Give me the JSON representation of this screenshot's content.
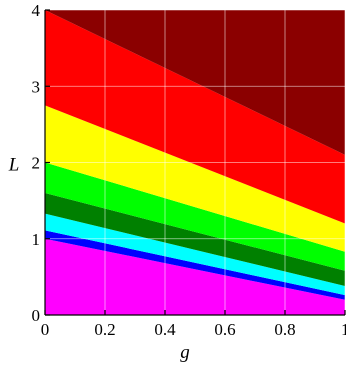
{
  "chart_data": {
    "type": "area",
    "xlabel": "g",
    "ylabel": "L",
    "xlim": [
      0,
      1
    ],
    "ylim": [
      0,
      4
    ],
    "x_ticks": [
      {
        "value": 0,
        "label": "0"
      },
      {
        "value": 0.2,
        "label": "0.2"
      },
      {
        "value": 0.4,
        "label": "0.4"
      },
      {
        "value": 0.6,
        "label": "0.6"
      },
      {
        "value": 0.8,
        "label": "0.8"
      },
      {
        "value": 1,
        "label": "1"
      }
    ],
    "y_ticks": [
      {
        "value": 0,
        "label": "0"
      },
      {
        "value": 1,
        "label": "1"
      },
      {
        "value": 2,
        "label": "2"
      },
      {
        "value": 3,
        "label": "3"
      },
      {
        "value": 4,
        "label": "4"
      }
    ],
    "grid": true,
    "region_colors": [
      "#ff00ff",
      "#0000ff",
      "#00ffff",
      "#008000",
      "#00ff00",
      "#ffff00",
      "#ff0000",
      "#8b0000"
    ],
    "boundaries": [
      {
        "x": [
          0,
          1
        ],
        "y": [
          1.0,
          0.2
        ]
      },
      {
        "x": [
          0,
          1
        ],
        "y": [
          1.11,
          0.26
        ]
      },
      {
        "x": [
          0,
          1
        ],
        "y": [
          1.33,
          0.38
        ]
      },
      {
        "x": [
          0,
          1
        ],
        "y": [
          1.6,
          0.58
        ]
      },
      {
        "x": [
          0,
          1
        ],
        "y": [
          2.0,
          0.83
        ]
      },
      {
        "x": [
          0,
          1
        ],
        "y": [
          2.75,
          1.2
        ]
      },
      {
        "x": [
          0,
          1
        ],
        "y": [
          4.0,
          2.1
        ]
      }
    ]
  }
}
